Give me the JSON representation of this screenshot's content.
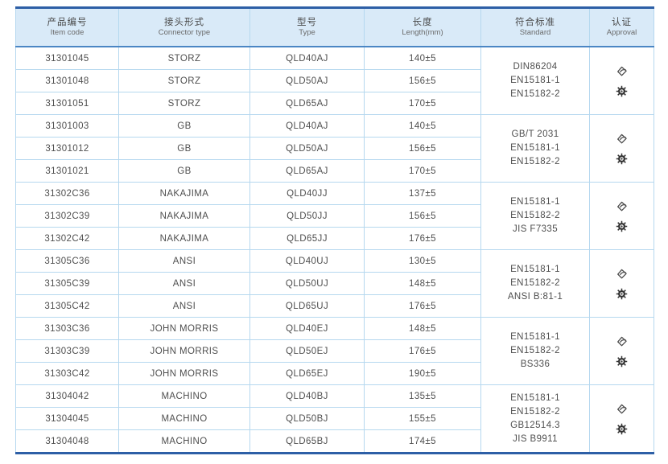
{
  "table": {
    "columns": [
      {
        "zh": "产品编号",
        "en": "Item code"
      },
      {
        "zh": "接头形式",
        "en": "Connector type"
      },
      {
        "zh": "型号",
        "en": "Type"
      },
      {
        "zh": "长度",
        "en": "Length(mm)"
      },
      {
        "zh": "符合标准",
        "en": "Standard"
      },
      {
        "zh": "认证",
        "en": "Approval"
      }
    ],
    "groups": [
      {
        "rows": [
          {
            "item_code": "31301045",
            "connector_type": "STORZ",
            "type": "QLD40AJ",
            "length": "140±5"
          },
          {
            "item_code": "31301048",
            "connector_type": "STORZ",
            "type": "QLD50AJ",
            "length": "156±5"
          },
          {
            "item_code": "31301051",
            "connector_type": "STORZ",
            "type": "QLD65AJ",
            "length": "170±5"
          }
        ],
        "standards": [
          "DIN86204",
          "EN15181-1",
          "EN15182-2"
        ],
        "approval_icons": [
          "certificate-icon",
          "wheel-mark-icon"
        ]
      },
      {
        "rows": [
          {
            "item_code": "31301003",
            "connector_type": "GB",
            "type": "QLD40AJ",
            "length": "140±5"
          },
          {
            "item_code": "31301012",
            "connector_type": "GB",
            "type": "QLD50AJ",
            "length": "156±5"
          },
          {
            "item_code": "31301021",
            "connector_type": "GB",
            "type": "QLD65AJ",
            "length": "170±5"
          }
        ],
        "standards": [
          "GB/T 2031",
          "EN15181-1",
          "EN15182-2"
        ],
        "approval_icons": [
          "certificate-icon",
          "wheel-mark-icon"
        ]
      },
      {
        "rows": [
          {
            "item_code": "31302C36",
            "connector_type": "NAKAJIMA",
            "type": "QLD40JJ",
            "length": "137±5"
          },
          {
            "item_code": "31302C39",
            "connector_type": "NAKAJIMA",
            "type": "QLD50JJ",
            "length": "156±5"
          },
          {
            "item_code": "31302C42",
            "connector_type": "NAKAJIMA",
            "type": "QLD65JJ",
            "length": "176±5"
          }
        ],
        "standards": [
          "EN15181-1",
          "EN15182-2",
          "JIS F7335"
        ],
        "approval_icons": [
          "certificate-icon",
          "wheel-mark-icon"
        ]
      },
      {
        "rows": [
          {
            "item_code": "31305C36",
            "connector_type": "ANSI",
            "type": "QLD40UJ",
            "length": "130±5"
          },
          {
            "item_code": "31305C39",
            "connector_type": "ANSI",
            "type": "QLD50UJ",
            "length": "148±5"
          },
          {
            "item_code": "31305C42",
            "connector_type": "ANSI",
            "type": "QLD65UJ",
            "length": "176±5"
          }
        ],
        "standards": [
          "EN15181-1",
          "EN15182-2",
          "ANSI B:81-1"
        ],
        "approval_icons": [
          "certificate-icon",
          "wheel-mark-icon"
        ]
      },
      {
        "rows": [
          {
            "item_code": "31303C36",
            "connector_type": "JOHN MORRIS",
            "type": "QLD40EJ",
            "length": "148±5"
          },
          {
            "item_code": "31303C39",
            "connector_type": "JOHN MORRIS",
            "type": "QLD50EJ",
            "length": "176±5"
          },
          {
            "item_code": "31303C42",
            "connector_type": "JOHN MORRIS",
            "type": "QLD65EJ",
            "length": "190±5"
          }
        ],
        "standards": [
          "EN15181-1",
          "EN15182-2",
          "BS336"
        ],
        "approval_icons": [
          "certificate-icon",
          "wheel-mark-icon"
        ]
      },
      {
        "rows": [
          {
            "item_code": "31304042",
            "connector_type": "MACHINO",
            "type": "QLD40BJ",
            "length": "135±5"
          },
          {
            "item_code": "31304045",
            "connector_type": "MACHINO",
            "type": "QLD50BJ",
            "length": "155±5"
          },
          {
            "item_code": "31304048",
            "connector_type": "MACHINO",
            "type": "QLD65BJ",
            "length": "174±5"
          }
        ],
        "standards": [
          "EN15181-1",
          "EN15182-2",
          "GB12514.3",
          "JIS B9911"
        ],
        "approval_icons": [
          "certificate-icon",
          "wheel-mark-icon"
        ]
      }
    ],
    "colors": {
      "border_heavy": "#2d5fa6",
      "header_bg": "#d9eaf8",
      "header_rule": "#4b86c4",
      "grid_line": "#b5d8ef",
      "text": "#4f4f4f"
    }
  }
}
